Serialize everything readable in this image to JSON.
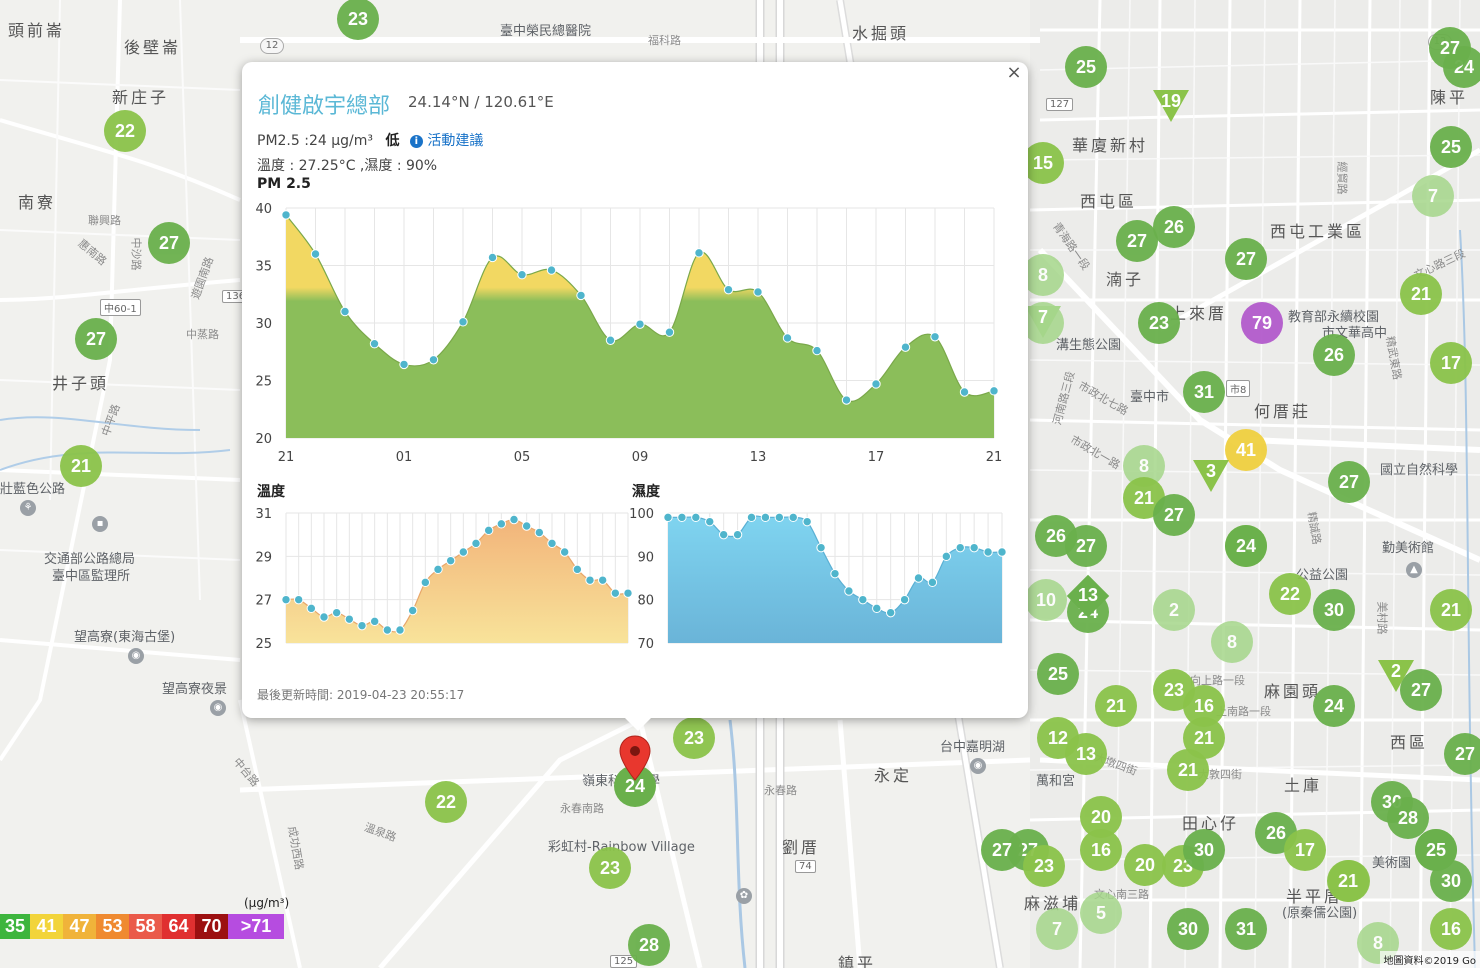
{
  "map": {
    "place_names": [
      {
        "name": "頭前崙"
      },
      {
        "name": "後壁崙"
      },
      {
        "name": "新庄子"
      },
      {
        "name": "南寮"
      },
      {
        "name": "井子頭"
      },
      {
        "name": "壯藍色公路"
      },
      {
        "name": "交通部公路總局"
      },
      {
        "name": "臺中區監理所"
      },
      {
        "name": "望高寮(東海古堡)"
      },
      {
        "name": "望高寮夜景"
      },
      {
        "name": "臺中榮民總醫院"
      },
      {
        "name": "水掘頭"
      },
      {
        "name": "華廈新村"
      },
      {
        "name": "西屯區"
      },
      {
        "name": "西屯工業區"
      },
      {
        "name": "湳子"
      },
      {
        "name": "上來厝"
      },
      {
        "name": "教育部永續校園"
      },
      {
        "name": "市文華高中"
      },
      {
        "name": "何厝莊"
      },
      {
        "name": "國立自然科學"
      },
      {
        "name": "勤美術館"
      },
      {
        "name": "公益公園"
      },
      {
        "name": "麻園頭"
      },
      {
        "name": "西區"
      },
      {
        "name": "台中嘉明湖"
      },
      {
        "name": "永定"
      },
      {
        "name": "萬和宮"
      },
      {
        "name": "田心仔"
      },
      {
        "name": "土庫"
      },
      {
        "name": "美術園"
      },
      {
        "name": "麻滋埔"
      },
      {
        "name": "半平厝"
      },
      {
        "name": "(原秦儒公園)"
      },
      {
        "name": "劉厝"
      },
      {
        "name": "鎮平"
      },
      {
        "name": "彩虹村-Rainbow Village"
      },
      {
        "name": "嶺東科技大學"
      },
      {
        "name": "臺中市"
      },
      {
        "name": "溝生態公園"
      },
      {
        "name": "陳平"
      },
      {
        "name": "福科路"
      }
    ],
    "streets": [
      "聯興路",
      "惠南路",
      "中沙路",
      "遊園南路",
      "中蒸路",
      "中平路",
      "中台路",
      "溫泉路",
      "成功西路",
      "永春南路",
      "永春路",
      "福科路",
      "青海路一段",
      "河南路三段",
      "市政北七路",
      "市政北一路",
      "文心路三段",
      "文心南三路",
      "大墩四街",
      "大敦四街",
      "上南路一段",
      "向上路一段",
      "美村路",
      "精誠路",
      "經貿路",
      "精武東路"
    ],
    "shields": [
      "12",
      "136",
      "中60-1",
      "127",
      "市8",
      "74",
      "125",
      "12"
    ],
    "markers": [
      {
        "v": "23",
        "c": "#6ab04c"
      },
      {
        "v": "22",
        "c": "#8bc34a"
      },
      {
        "v": "27",
        "c": "#6ab04c"
      },
      {
        "v": "27",
        "c": "#6ab04c"
      },
      {
        "v": "21",
        "c": "#8bc34a"
      },
      {
        "v": "25",
        "c": "#6ab04c"
      },
      {
        "v": "24",
        "c": "#6ab04c"
      },
      {
        "v": "15",
        "c": "#8bc34a"
      },
      {
        "v": "26",
        "c": "#6ab04c"
      },
      {
        "v": "27",
        "c": "#6ab04c"
      },
      {
        "v": "27",
        "c": "#6ab04c"
      },
      {
        "v": "25",
        "c": "#6ab04c"
      },
      {
        "v": "7",
        "c": "#a5d68a"
      },
      {
        "v": "8",
        "c": "#a5d68a"
      },
      {
        "v": "7",
        "c": "#a5d68a"
      },
      {
        "v": "23",
        "c": "#6ab04c"
      },
      {
        "v": "79",
        "c": "#b35bcc"
      },
      {
        "v": "21",
        "c": "#8bc34a"
      },
      {
        "v": "17",
        "c": "#8bc34a"
      },
      {
        "v": "26",
        "c": "#6ab04c"
      },
      {
        "v": "31",
        "c": "#6ab04c"
      },
      {
        "v": "41",
        "c": "#f0d040"
      },
      {
        "v": "8",
        "c": "#a5d68a"
      },
      {
        "v": "21",
        "c": "#8bc34a"
      },
      {
        "v": "27",
        "c": "#6ab04c"
      },
      {
        "v": "27",
        "c": "#6ab04c"
      },
      {
        "v": "19",
        "c": "#8bc34a"
      },
      {
        "v": "10",
        "c": "#a5d68a"
      },
      {
        "v": "27",
        "c": "#6ab04c"
      },
      {
        "v": "26",
        "c": "#6ab04c"
      },
      {
        "v": "2",
        "c": "#a5d68a"
      },
      {
        "v": "22",
        "c": "#8bc34a"
      },
      {
        "v": "30",
        "c": "#6ab04c"
      },
      {
        "v": "21",
        "c": "#8bc34a"
      },
      {
        "v": "8",
        "c": "#a5d68a"
      },
      {
        "v": "25",
        "c": "#6ab04c"
      },
      {
        "v": "21",
        "c": "#8bc34a"
      },
      {
        "v": "23",
        "c": "#8bc34a"
      },
      {
        "v": "16",
        "c": "#8bc34a"
      },
      {
        "v": "24",
        "c": "#6ab04c"
      },
      {
        "v": "27",
        "c": "#6ab04c"
      },
      {
        "v": "12",
        "c": "#8bc34a"
      },
      {
        "v": "13",
        "c": "#8bc34a"
      },
      {
        "v": "21",
        "c": "#8bc34a"
      },
      {
        "v": "21",
        "c": "#8bc34a"
      },
      {
        "v": "20",
        "c": "#8bc34a"
      },
      {
        "v": "16",
        "c": "#8bc34a"
      },
      {
        "v": "20",
        "c": "#8bc34a"
      },
      {
        "v": "23",
        "c": "#8bc34a"
      },
      {
        "v": "30",
        "c": "#6ab04c"
      },
      {
        "v": "30",
        "c": "#6ab04c"
      },
      {
        "v": "28",
        "c": "#6ab04c"
      },
      {
        "v": "26",
        "c": "#6ab04c"
      },
      {
        "v": "17",
        "c": "#8bc34a"
      },
      {
        "v": "21",
        "c": "#8bc34a"
      },
      {
        "v": "25",
        "c": "#6ab04c"
      },
      {
        "v": "30",
        "c": "#6ab04c"
      },
      {
        "v": "27",
        "c": "#6ab04c"
      },
      {
        "v": "27",
        "c": "#6ab04c"
      },
      {
        "v": "23",
        "c": "#8bc34a"
      },
      {
        "v": "5",
        "c": "#a5d68a"
      },
      {
        "v": "7",
        "c": "#a5d68a"
      },
      {
        "v": "30",
        "c": "#6ab04c"
      },
      {
        "v": "31",
        "c": "#6ab04c"
      },
      {
        "v": "16",
        "c": "#8bc34a"
      },
      {
        "v": "8",
        "c": "#a5d68a"
      },
      {
        "v": "22",
        "c": "#8bc34a"
      },
      {
        "v": "23",
        "c": "#8bc34a"
      },
      {
        "v": "23",
        "c": "#8bc34a"
      },
      {
        "v": "28",
        "c": "#6ab04c"
      },
      {
        "v": "24",
        "c": "#6ab04c"
      },
      {
        "v": "27",
        "c": "#6ab04c"
      },
      {
        "v": "24",
        "c": "#6ab04c"
      },
      {
        "v": "25",
        "c": "#6ab04c"
      },
      {
        "v": "21",
        "c": "#8bc34a"
      },
      {
        "v": "27",
        "c": "#6ab04c"
      }
    ],
    "triangles": [
      {
        "v": "19"
      },
      {
        "v": "3"
      },
      {
        "v": "7"
      },
      {
        "v": "2"
      }
    ],
    "diamonds": [
      {
        "v": "13"
      }
    ],
    "selected_marker": {
      "v": "24"
    }
  },
  "legend": {
    "unit": "(μg/m³)",
    "cells": [
      {
        "label": "35",
        "color": "#3db53d"
      },
      {
        "label": "41",
        "color": "#f2d43a"
      },
      {
        "label": "47",
        "color": "#f0b33a"
      },
      {
        "label": "53",
        "color": "#ef8a30"
      },
      {
        "label": "58",
        "color": "#ea5a4a"
      },
      {
        "label": "64",
        "color": "#e03030"
      },
      {
        "label": "70",
        "color": "#9c1010"
      },
      {
        "label": ">71",
        "color": "#b64ce0"
      }
    ]
  },
  "attribution": "地圖資料©2019 Go",
  "popup": {
    "close": "×",
    "station": "創健啟宇總部",
    "coords": "24.14°N / 120.61°E",
    "pm_text": "PM2.5 :24 μg/m³",
    "level": "低",
    "info_glyph": "i",
    "advice": "活動建議",
    "env_text": "溫度 : 27.25°C ,濕度 : 90%",
    "updated": "最後更新時間: 2019-04-23 20:55:17",
    "colors": {
      "pm_green": "#8bbe5a",
      "pm_yellow": "#f2d862",
      "temp_orange": "#f2b47a",
      "temp_yellow": "#f8e39a",
      "hum_top": "#7fd4f0",
      "hum_bottom": "#6ab4d8",
      "point": "#4fb5cc"
    }
  },
  "chart_data": [
    {
      "type": "area",
      "title": "PM 2.5",
      "x_ticks": [
        "21",
        "01",
        "05",
        "09",
        "13",
        "17",
        "21"
      ],
      "y_ticks": [
        "20",
        "25",
        "30",
        "35",
        "40"
      ],
      "ylim": [
        20,
        40
      ],
      "threshold": 32.5,
      "values": [
        39.4,
        36.0,
        31.0,
        28.2,
        26.4,
        26.8,
        30.1,
        35.7,
        34.2,
        34.6,
        32.4,
        28.5,
        29.9,
        29.2,
        36.1,
        32.9,
        32.7,
        28.7,
        27.6,
        23.3,
        24.7,
        27.9,
        28.8,
        24.0,
        24.1
      ]
    },
    {
      "type": "area",
      "title": "溫度",
      "y_ticks": [
        "25",
        "27",
        "29",
        "31"
      ],
      "ylim": [
        25,
        31
      ],
      "values": [
        27.0,
        27.0,
        26.6,
        26.2,
        26.4,
        26.1,
        25.8,
        26.0,
        25.6,
        25.6,
        26.5,
        27.8,
        28.4,
        28.8,
        29.2,
        29.6,
        30.2,
        30.5,
        30.7,
        30.4,
        30.1,
        29.6,
        29.2,
        28.4,
        27.9,
        27.9,
        27.3,
        27.3
      ]
    },
    {
      "type": "area",
      "title": "濕度",
      "y_ticks": [
        "70",
        "80",
        "90",
        "100"
      ],
      "ylim": [
        70,
        100
      ],
      "values": [
        99,
        99,
        99,
        98,
        95,
        95,
        99,
        99,
        99,
        99,
        98,
        92,
        86,
        82,
        80,
        78,
        77,
        80,
        85,
        84,
        90,
        92,
        92,
        91,
        91
      ]
    }
  ]
}
